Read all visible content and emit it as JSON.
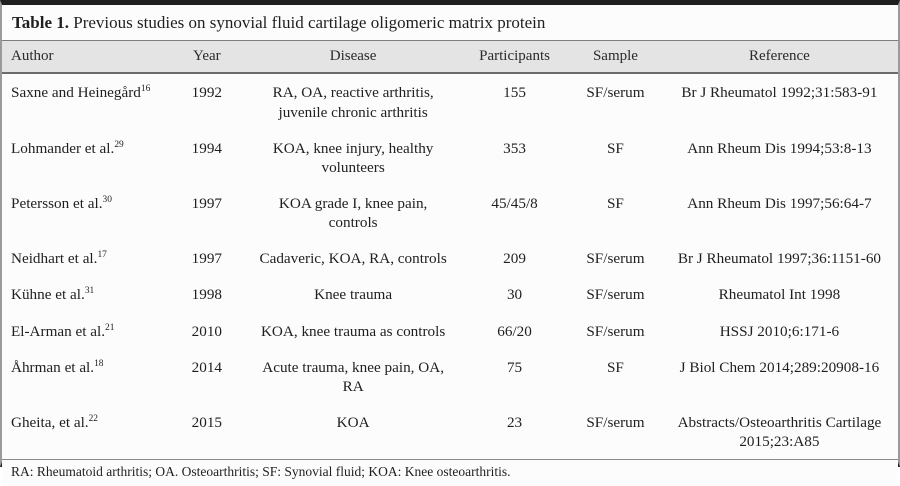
{
  "colors": {
    "top_bottom_bar": "#1f1f1f",
    "side_border": "#9a9a9a",
    "header_background": "#e4e4e4",
    "body_background": "#fcfcfc",
    "text": "#1f1f1f"
  },
  "table": {
    "title_label": "Table 1.",
    "title_text": " Previous studies on synovial fluid cartilage oligomeric matrix protein",
    "columns": {
      "author": "Author",
      "year": "Year",
      "disease": "Disease",
      "participants": "Participants",
      "sample": "Sample",
      "reference": "Reference"
    },
    "rows": [
      {
        "author": "Saxne and Heinegård",
        "author_sup": "16",
        "year": "1992",
        "disease": "RA, OA, reactive arthritis, juvenile chronic arthritis",
        "participants": "155",
        "sample": "SF/serum",
        "reference": "Br J Rheumatol 1992;31:583-91"
      },
      {
        "author": "Lohmander et al.",
        "author_sup": "29",
        "year": "1994",
        "disease": "KOA, knee injury, healthy volunteers",
        "participants": "353",
        "sample": "SF",
        "reference": "Ann Rheum Dis 1994;53:8-13"
      },
      {
        "author": "Petersson et al.",
        "author_sup": "30",
        "year": "1997",
        "disease": "KOA grade I, knee pain, controls",
        "participants": "45/45/8",
        "sample": "SF",
        "reference": "Ann Rheum Dis 1997;56:64-7"
      },
      {
        "author": "Neidhart et al.",
        "author_sup": "17",
        "year": "1997",
        "disease": "Cadaveric, KOA, RA, controls",
        "participants": "209",
        "sample": "SF/serum",
        "reference": "Br J Rheumatol 1997;36:1151-60"
      },
      {
        "author": "Kühne et al.",
        "author_sup": "31",
        "year": "1998",
        "disease": "Knee trauma",
        "participants": "30",
        "sample": "SF/serum",
        "reference": "Rheumatol Int 1998"
      },
      {
        "author": "El-Arman et al.",
        "author_sup": "21",
        "year": "2010",
        "disease": "KOA, knee trauma as controls",
        "participants": "66/20",
        "sample": "SF/serum",
        "reference": "HSSJ 2010;6:171-6"
      },
      {
        "author": "Åhrman et al.",
        "author_sup": "18",
        "year": "2014",
        "disease": "Acute trauma, knee pain, OA, RA",
        "participants": "75",
        "sample": "SF",
        "reference": "J Biol Chem 2014;289:20908-16"
      },
      {
        "author": "Gheita, et al.",
        "author_sup": "22",
        "year": "2015",
        "disease": "KOA",
        "participants": "23",
        "sample": "SF/serum",
        "reference": "Abstracts/Osteoarthritis Cartilage 2015;23:A85"
      }
    ],
    "footnote": "RA: Rheumatoid arthritis; OA. Osteoarthritis; SF: Synovial fluid; KOA: Knee osteoarthritis."
  }
}
